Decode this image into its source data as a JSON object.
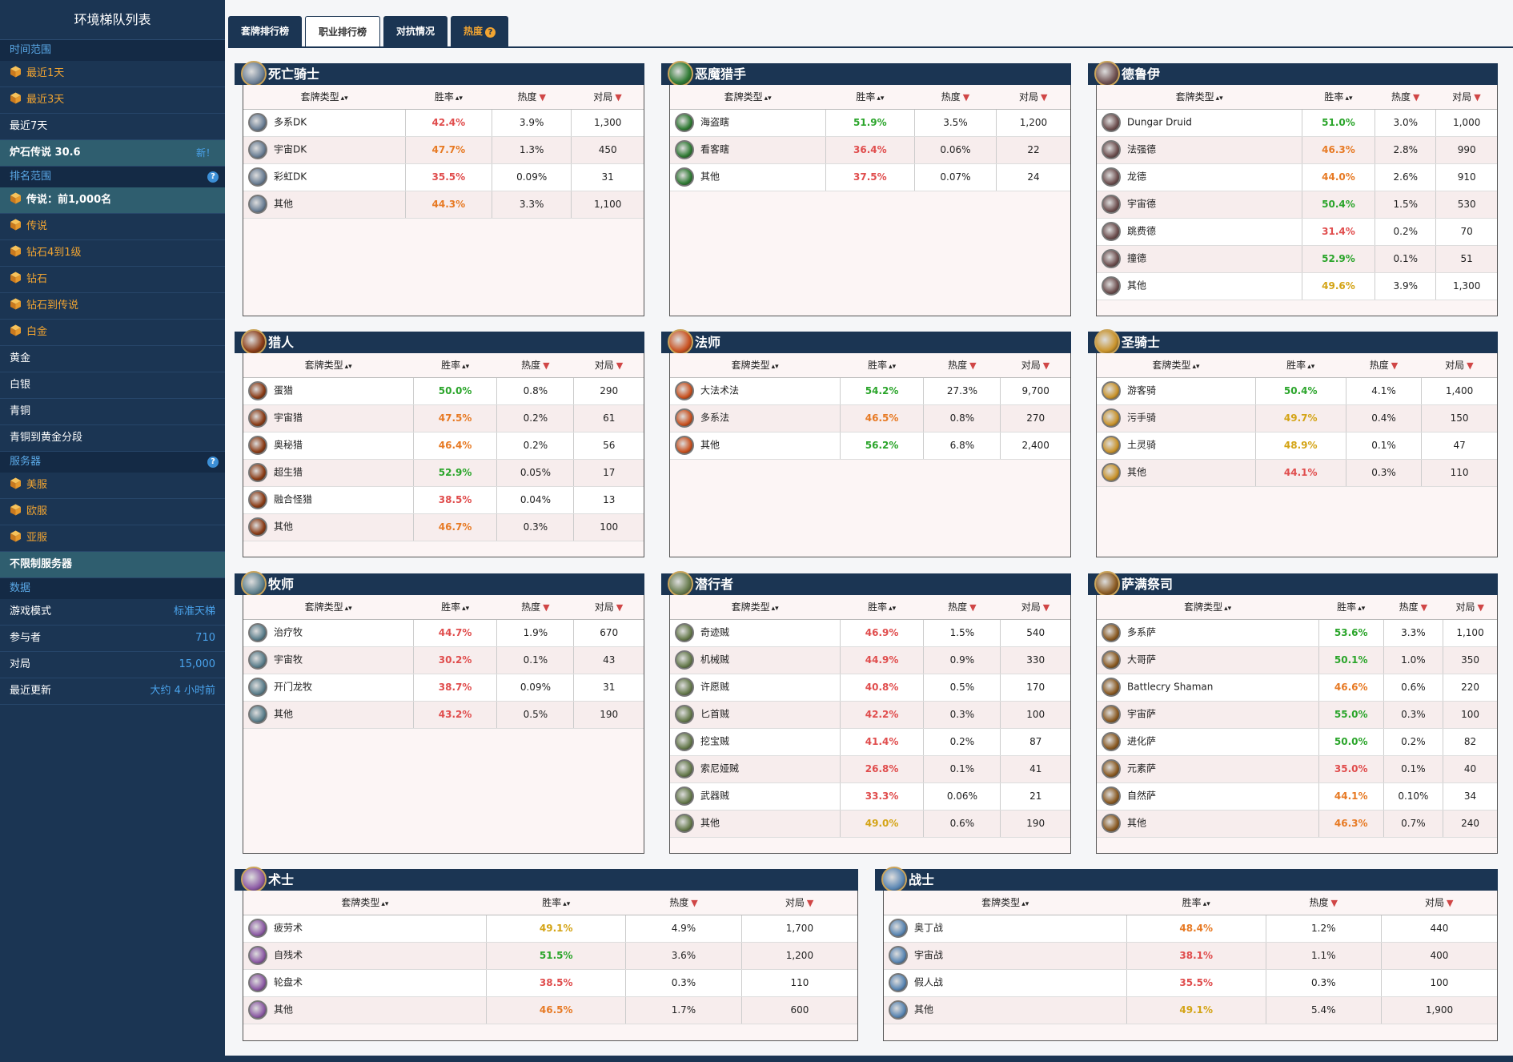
{
  "sidebar": {
    "title": "环境梯队列表",
    "time_head": "时间范围",
    "time_items": [
      "最近1天",
      "最近3天",
      "最近7天"
    ],
    "patch": "炉石传说 30.6",
    "patch_new": "新！",
    "rank_head": "排名范围",
    "rank_items": [
      "传说：前1,000名",
      "传说",
      "钻石4到1级",
      "钻石",
      "钻石到传说",
      "白金",
      "黄金",
      "白银",
      "青铜",
      "青铜到黄金分段"
    ],
    "server_head": "服务器",
    "server_items": [
      "美服",
      "欧服",
      "亚服"
    ],
    "server_all": "不限制服务器",
    "data_head": "数据",
    "data_rows": [
      {
        "label": "游戏模式",
        "value": "标准天梯"
      },
      {
        "label": "参与者",
        "value": "710"
      },
      {
        "label": "对局",
        "value": "15,000"
      },
      {
        "label": "最近更新",
        "value": "大约 4 小时前"
      }
    ]
  },
  "tabs": [
    "套牌排行榜",
    "职业排行榜",
    "对抗情况",
    "热度"
  ],
  "columns": {
    "deck": "套牌类型",
    "wr": "胜率",
    "pop": "热度",
    "games": "对局"
  },
  "colors": {
    "navy": "#1b3553",
    "orange": "#f1a431",
    "red": "#e04d4d",
    "green": "#2ba52b",
    "yellow": "#d4a416"
  },
  "classes": [
    {
      "name": "死亡骑士",
      "icon": "death-knight-icon",
      "decks": [
        {
          "n": "多系DK",
          "wr": "42.4%",
          "c": "red",
          "p": "3.9%",
          "g": "1,300"
        },
        {
          "n": "宇宙DK",
          "wr": "47.7%",
          "c": "orange",
          "p": "1.3%",
          "g": "450"
        },
        {
          "n": "彩虹DK",
          "wr": "35.5%",
          "c": "red",
          "p": "0.09%",
          "g": "31"
        },
        {
          "n": "其他",
          "wr": "44.3%",
          "c": "orange",
          "p": "3.3%",
          "g": "1,100"
        }
      ]
    },
    {
      "name": "恶魔猎手",
      "icon": "demon-hunter-icon",
      "decks": [
        {
          "n": "海盗瞎",
          "wr": "51.9%",
          "c": "green",
          "p": "3.5%",
          "g": "1,200"
        },
        {
          "n": "看客瞎",
          "wr": "36.4%",
          "c": "red",
          "p": "0.06%",
          "g": "22"
        },
        {
          "n": "其他",
          "wr": "37.5%",
          "c": "red",
          "p": "0.07%",
          "g": "24"
        }
      ]
    },
    {
      "name": "德鲁伊",
      "icon": "druid-icon",
      "decks": [
        {
          "n": "Dungar Druid",
          "wr": "51.0%",
          "c": "green",
          "p": "3.0%",
          "g": "1,000"
        },
        {
          "n": "法强德",
          "wr": "46.3%",
          "c": "orange",
          "p": "2.8%",
          "g": "990"
        },
        {
          "n": "龙德",
          "wr": "44.0%",
          "c": "orange",
          "p": "2.6%",
          "g": "910"
        },
        {
          "n": "宇宙德",
          "wr": "50.4%",
          "c": "green",
          "p": "1.5%",
          "g": "530"
        },
        {
          "n": "跳费德",
          "wr": "31.4%",
          "c": "red",
          "p": "0.2%",
          "g": "70"
        },
        {
          "n": "撞德",
          "wr": "52.9%",
          "c": "green",
          "p": "0.1%",
          "g": "51"
        },
        {
          "n": "其他",
          "wr": "49.6%",
          "c": "yellow",
          "p": "3.9%",
          "g": "1,300"
        }
      ]
    },
    {
      "name": "猎人",
      "icon": "hunter-icon",
      "decks": [
        {
          "n": "蛋猎",
          "wr": "50.0%",
          "c": "green",
          "p": "0.8%",
          "g": "290"
        },
        {
          "n": "宇宙猎",
          "wr": "47.5%",
          "c": "orange",
          "p": "0.2%",
          "g": "61"
        },
        {
          "n": "奥秘猎",
          "wr": "46.4%",
          "c": "orange",
          "p": "0.2%",
          "g": "56"
        },
        {
          "n": "超生猎",
          "wr": "52.9%",
          "c": "green",
          "p": "0.05%",
          "g": "17"
        },
        {
          "n": "融合怪猎",
          "wr": "38.5%",
          "c": "red",
          "p": "0.04%",
          "g": "13"
        },
        {
          "n": "其他",
          "wr": "46.7%",
          "c": "orange",
          "p": "0.3%",
          "g": "100"
        }
      ]
    },
    {
      "name": "法师",
      "icon": "mage-icon",
      "decks": [
        {
          "n": "大法术法",
          "wr": "54.2%",
          "c": "green",
          "p": "27.3%",
          "g": "9,700"
        },
        {
          "n": "多系法",
          "wr": "46.5%",
          "c": "orange",
          "p": "0.8%",
          "g": "270"
        },
        {
          "n": "其他",
          "wr": "56.2%",
          "c": "green",
          "p": "6.8%",
          "g": "2,400"
        }
      ]
    },
    {
      "name": "圣骑士",
      "icon": "paladin-icon",
      "decks": [
        {
          "n": "游客骑",
          "wr": "50.4%",
          "c": "green",
          "p": "4.1%",
          "g": "1,400"
        },
        {
          "n": "污手骑",
          "wr": "49.7%",
          "c": "yellow",
          "p": "0.4%",
          "g": "150"
        },
        {
          "n": "土灵骑",
          "wr": "48.9%",
          "c": "yellow",
          "p": "0.1%",
          "g": "47"
        },
        {
          "n": "其他",
          "wr": "44.1%",
          "c": "red",
          "p": "0.3%",
          "g": "110"
        }
      ]
    },
    {
      "name": "牧师",
      "icon": "priest-icon",
      "decks": [
        {
          "n": "治疗牧",
          "wr": "44.7%",
          "c": "red",
          "p": "1.9%",
          "g": "670"
        },
        {
          "n": "宇宙牧",
          "wr": "30.2%",
          "c": "red",
          "p": "0.1%",
          "g": "43"
        },
        {
          "n": "开门龙牧",
          "wr": "38.7%",
          "c": "red",
          "p": "0.09%",
          "g": "31"
        },
        {
          "n": "其他",
          "wr": "43.2%",
          "c": "red",
          "p": "0.5%",
          "g": "190"
        }
      ]
    },
    {
      "name": "潜行者",
      "icon": "rogue-icon",
      "decks": [
        {
          "n": "奇迹贼",
          "wr": "46.9%",
          "c": "red",
          "p": "1.5%",
          "g": "540"
        },
        {
          "n": "机械贼",
          "wr": "44.9%",
          "c": "red",
          "p": "0.9%",
          "g": "330"
        },
        {
          "n": "许愿贼",
          "wr": "40.8%",
          "c": "red",
          "p": "0.5%",
          "g": "170"
        },
        {
          "n": "匕首贼",
          "wr": "42.2%",
          "c": "red",
          "p": "0.3%",
          "g": "100"
        },
        {
          "n": "挖宝贼",
          "wr": "41.4%",
          "c": "red",
          "p": "0.2%",
          "g": "87"
        },
        {
          "n": "索尼娅贼",
          "wr": "26.8%",
          "c": "red",
          "p": "0.1%",
          "g": "41"
        },
        {
          "n": "武器贼",
          "wr": "33.3%",
          "c": "red",
          "p": "0.06%",
          "g": "21"
        },
        {
          "n": "其他",
          "wr": "49.0%",
          "c": "yellow",
          "p": "0.6%",
          "g": "190"
        }
      ]
    },
    {
      "name": "萨满祭司",
      "icon": "shaman-icon",
      "decks": [
        {
          "n": "多系萨",
          "wr": "53.6%",
          "c": "green",
          "p": "3.3%",
          "g": "1,100"
        },
        {
          "n": "大哥萨",
          "wr": "50.1%",
          "c": "green",
          "p": "1.0%",
          "g": "350"
        },
        {
          "n": "Battlecry Shaman",
          "wr": "46.6%",
          "c": "orange",
          "p": "0.6%",
          "g": "220"
        },
        {
          "n": "宇宙萨",
          "wr": "55.0%",
          "c": "green",
          "p": "0.3%",
          "g": "100"
        },
        {
          "n": "进化萨",
          "wr": "50.0%",
          "c": "green",
          "p": "0.2%",
          "g": "82"
        },
        {
          "n": "元素萨",
          "wr": "35.0%",
          "c": "red",
          "p": "0.1%",
          "g": "40"
        },
        {
          "n": "自然萨",
          "wr": "44.1%",
          "c": "orange",
          "p": "0.10%",
          "g": "34"
        },
        {
          "n": "其他",
          "wr": "46.3%",
          "c": "orange",
          "p": "0.7%",
          "g": "240"
        }
      ]
    },
    {
      "name": "术士",
      "icon": "warlock-icon",
      "decks": [
        {
          "n": "疲劳术",
          "wr": "49.1%",
          "c": "yellow",
          "p": "4.9%",
          "g": "1,700"
        },
        {
          "n": "自残术",
          "wr": "51.5%",
          "c": "green",
          "p": "3.6%",
          "g": "1,200"
        },
        {
          "n": "轮盘术",
          "wr": "38.5%",
          "c": "red",
          "p": "0.3%",
          "g": "110"
        },
        {
          "n": "其他",
          "wr": "46.5%",
          "c": "orange",
          "p": "1.7%",
          "g": "600"
        }
      ]
    },
    {
      "name": "战士",
      "icon": "warrior-icon",
      "decks": [
        {
          "n": "奥丁战",
          "wr": "48.4%",
          "c": "orange",
          "p": "1.2%",
          "g": "440"
        },
        {
          "n": "宇宙战",
          "wr": "38.1%",
          "c": "red",
          "p": "1.1%",
          "g": "400"
        },
        {
          "n": "假人战",
          "wr": "35.5%",
          "c": "red",
          "p": "0.3%",
          "g": "100"
        },
        {
          "n": "其他",
          "wr": "49.1%",
          "c": "yellow",
          "p": "5.4%",
          "g": "1,900"
        }
      ]
    }
  ]
}
